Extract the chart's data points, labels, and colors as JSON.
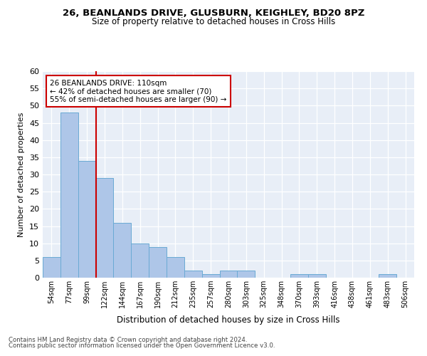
{
  "title1": "26, BEANLANDS DRIVE, GLUSBURN, KEIGHLEY, BD20 8PZ",
  "title2": "Size of property relative to detached houses in Cross Hills",
  "xlabel": "Distribution of detached houses by size in Cross Hills",
  "ylabel": "Number of detached properties",
  "footnote1": "Contains HM Land Registry data © Crown copyright and database right 2024.",
  "footnote2": "Contains public sector information licensed under the Open Government Licence v3.0.",
  "annotation_line1": "26 BEANLANDS DRIVE: 110sqm",
  "annotation_line2": "← 42% of detached houses are smaller (70)",
  "annotation_line3": "55% of semi-detached houses are larger (90) →",
  "bar_labels": [
    "54sqm",
    "77sqm",
    "99sqm",
    "122sqm",
    "144sqm",
    "167sqm",
    "190sqm",
    "212sqm",
    "235sqm",
    "257sqm",
    "280sqm",
    "303sqm",
    "325sqm",
    "348sqm",
    "370sqm",
    "393sqm",
    "416sqm",
    "438sqm",
    "461sqm",
    "483sqm",
    "506sqm"
  ],
  "bar_values": [
    6,
    48,
    34,
    29,
    16,
    10,
    9,
    6,
    2,
    1,
    2,
    2,
    0,
    0,
    1,
    1,
    0,
    0,
    0,
    1,
    0
  ],
  "bar_color": "#aec6e8",
  "bar_edge_color": "#6aaad4",
  "redline_color": "#cc0000",
  "annotation_box_color": "#ffffff",
  "annotation_box_edge": "#cc0000",
  "background_color": "#e8eef7",
  "ylim": [
    0,
    60
  ],
  "yticks": [
    0,
    5,
    10,
    15,
    20,
    25,
    30,
    35,
    40,
    45,
    50,
    55,
    60
  ]
}
